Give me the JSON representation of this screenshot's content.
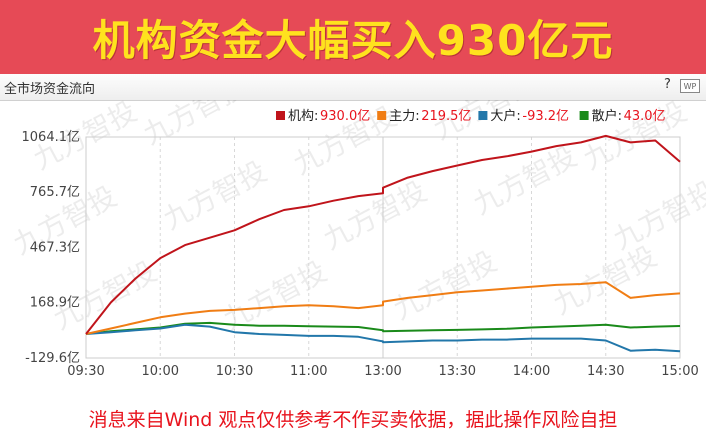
{
  "banner": {
    "title": "机构资金大幅买入930亿元"
  },
  "panel": {
    "title": "全市场资金流向",
    "help_icon": "question-icon",
    "wp_icon_text": "WP"
  },
  "footer": {
    "text": "消息来自Wind 观点仅供参考不作买卖依据，据此操作风险自担"
  },
  "watermark": {
    "text": "九方智投"
  },
  "colors": {
    "banner_bg": "#e64a56",
    "banner_text": "#ffe21e",
    "legend_value": "#e8131d",
    "footer_text": "#e8131d"
  },
  "chart_data": {
    "type": "line",
    "x_ticks": [
      "09:30",
      "10:00",
      "10:30",
      "11:00",
      "13:00",
      "13:30",
      "14:00",
      "14:30",
      "15:00"
    ],
    "y_ticks": [
      "1064.1亿",
      "765.7亿",
      "467.3亿",
      "168.9亿",
      "-129.6亿"
    ],
    "y_tick_values": [
      1064.1,
      765.7,
      467.3,
      168.9,
      -129.6
    ],
    "ylim": [
      -129.6,
      1064.1
    ],
    "grid": "vertical-dashed",
    "legend_position": "top-right",
    "series": [
      {
        "name": "机构",
        "legend_value": "930.0亿",
        "color": "#c0141b",
        "x": [
          "09:30",
          "09:40",
          "09:50",
          "10:00",
          "10:10",
          "10:20",
          "10:30",
          "10:40",
          "10:50",
          "11:00",
          "11:10",
          "11:20",
          "11:30",
          "13:00",
          "13:10",
          "13:20",
          "13:30",
          "13:40",
          "13:50",
          "14:00",
          "14:10",
          "14:20",
          "14:30",
          "14:40",
          "14:50",
          "15:00"
        ],
        "values": [
          0,
          170,
          300,
          410,
          480,
          520,
          560,
          620,
          670,
          690,
          720,
          745,
          760,
          790,
          845,
          880,
          910,
          940,
          960,
          985,
          1015,
          1035,
          1070,
          1035,
          1045,
          930
        ]
      },
      {
        "name": "主力",
        "legend_value": "219.5亿",
        "color": "#f07d14",
        "x": [
          "09:30",
          "09:40",
          "09:50",
          "10:00",
          "10:10",
          "10:20",
          "10:30",
          "10:40",
          "10:50",
          "11:00",
          "11:10",
          "11:20",
          "11:30",
          "13:00",
          "13:10",
          "13:20",
          "13:30",
          "13:40",
          "13:50",
          "14:00",
          "14:10",
          "14:20",
          "14:30",
          "14:40",
          "14:50",
          "15:00"
        ],
        "values": [
          0,
          30,
          60,
          90,
          110,
          125,
          130,
          140,
          150,
          155,
          150,
          140,
          155,
          175,
          195,
          210,
          225,
          235,
          245,
          255,
          265,
          270,
          280,
          195,
          210,
          219.5
        ]
      },
      {
        "name": "大户",
        "legend_value": "-93.2亿",
        "color": "#2277aa",
        "x": [
          "09:30",
          "09:40",
          "09:50",
          "10:00",
          "10:10",
          "10:20",
          "10:30",
          "10:40",
          "10:50",
          "11:00",
          "11:10",
          "11:20",
          "11:30",
          "13:00",
          "13:10",
          "13:20",
          "13:30",
          "13:40",
          "13:50",
          "14:00",
          "14:10",
          "14:20",
          "14:30",
          "14:40",
          "14:50",
          "15:00"
        ],
        "values": [
          0,
          10,
          20,
          30,
          50,
          40,
          10,
          0,
          -5,
          -10,
          -10,
          -15,
          -40,
          -45,
          -40,
          -35,
          -35,
          -30,
          -30,
          -25,
          -25,
          -25,
          -35,
          -90,
          -85,
          -93.2
        ]
      },
      {
        "name": "散户",
        "legend_value": "43.0亿",
        "color": "#1a8a1a",
        "x": [
          "09:30",
          "09:40",
          "09:50",
          "10:00",
          "10:10",
          "10:20",
          "10:30",
          "10:40",
          "10:50",
          "11:00",
          "11:10",
          "11:20",
          "11:30",
          "13:00",
          "13:10",
          "13:20",
          "13:30",
          "13:40",
          "13:50",
          "14:00",
          "14:10",
          "14:20",
          "14:30",
          "14:40",
          "14:50",
          "15:00"
        ],
        "values": [
          0,
          15,
          25,
          35,
          55,
          60,
          50,
          45,
          45,
          42,
          40,
          38,
          20,
          15,
          18,
          20,
          22,
          25,
          28,
          35,
          40,
          45,
          50,
          35,
          40,
          43.0
        ]
      }
    ]
  }
}
